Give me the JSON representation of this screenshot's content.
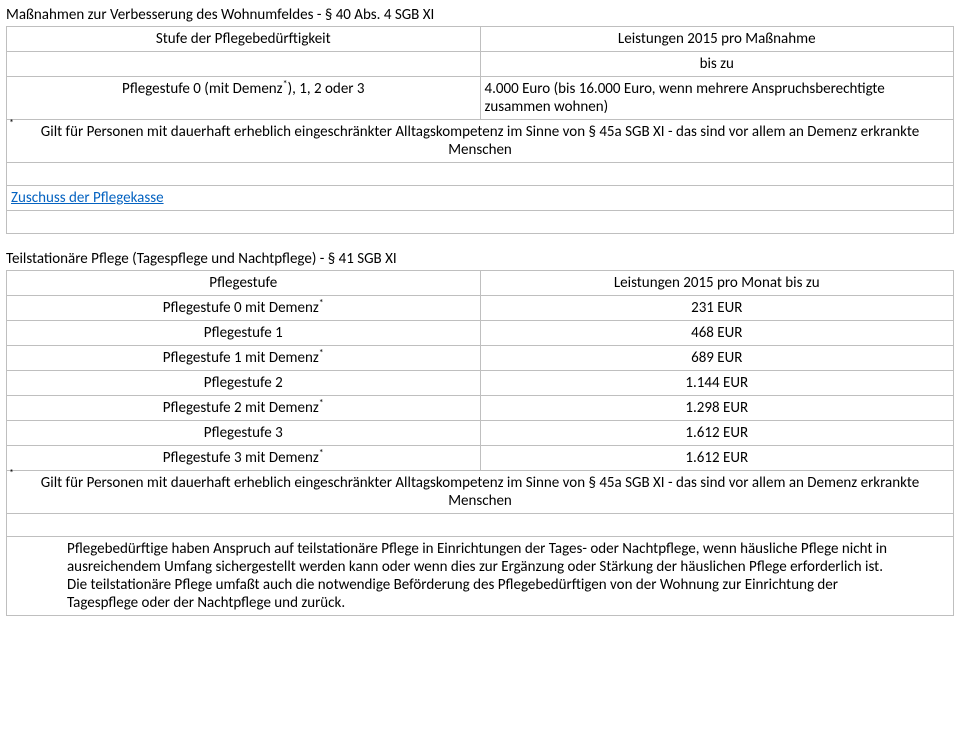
{
  "colors": {
    "text": "#000000",
    "border": "#bfbfbf",
    "link": "#0563c1",
    "background": "#ffffff"
  },
  "fonts": {
    "family": "Calibri",
    "body_size_pt": 11
  },
  "section1": {
    "title": "Maßnahmen zur Verbesserung des Wohnumfeldes - § 40 Abs. 4 SGB XI",
    "header_left": "Stufe der Pflegebedürftigkeit",
    "header_right": "Leistungen 2015 pro Maßnahme",
    "sub_right": "bis zu",
    "row_left": "Pflegestufe 0 (mit Demenz ), 1, 2 oder 3",
    "row_left_prefix": "Pflegestufe 0 (mit Demenz",
    "row_left_suffix": "), 1, 2 oder 3",
    "row_right_a": "4.000 Euro (bis 16.000 Euro, wenn mehrere Anspruchsberechtigte",
    "row_right_b": "zusammen wohnen)",
    "footnote": "Gilt für Personen mit dauerhaft erheblich eingeschränkter Alltagskompetenz im Sinne von § 45a SGB XI - das sind vor allem an Demenz erkrankte Menschen",
    "link_label": "Zuschuss der Pflegekasse"
  },
  "section2": {
    "title": "Teilstationäre Pflege (Tagespflege und Nachtpflege) - § 41 SGB XI",
    "header_left": "Pflegestufe",
    "header_right": "Leistungen 2015 pro Monat bis zu",
    "rows": [
      {
        "label": "Pflegestufe 0 mit Demenz",
        "star": true,
        "value": "231 EUR"
      },
      {
        "label": "Pflegestufe 1",
        "star": false,
        "value": "468 EUR"
      },
      {
        "label": "Pflegestufe 1 mit Demenz",
        "star": true,
        "value": "689 EUR"
      },
      {
        "label": "Pflegestufe 2",
        "star": false,
        "value": "1.144 EUR"
      },
      {
        "label": "Pflegestufe 2 mit Demenz",
        "star": true,
        "value": "1.298 EUR"
      },
      {
        "label": "Pflegestufe 3",
        "star": false,
        "value": "1.612 EUR"
      },
      {
        "label": "Pflegestufe 3 mit Demenz",
        "star": true,
        "value": "1.612 EUR"
      }
    ],
    "footnote": "Gilt für Personen mit dauerhaft erheblich eingeschränkter Alltagskompetenz im Sinne von § 45a SGB XI - das sind vor allem an Demenz erkrankte Menschen",
    "paragraph": "Pflegebedürftige haben Anspruch auf teilstationäre Pflege in Einrichtungen der Tages- oder Nachtpflege, wenn häusliche Pflege nicht in ausreichendem Umfang sichergestellt werden kann oder wenn dies zur Ergänzung oder Stärkung der häuslichen Pflege erforderlich ist. Die teilstationäre Pflege umfaßt auch die notwendige Beförderung des Pflegebedürftigen von der Wohnung zur Einrichtung der Tagespflege oder der Nachtpflege und zurück."
  },
  "asterisk": "*"
}
